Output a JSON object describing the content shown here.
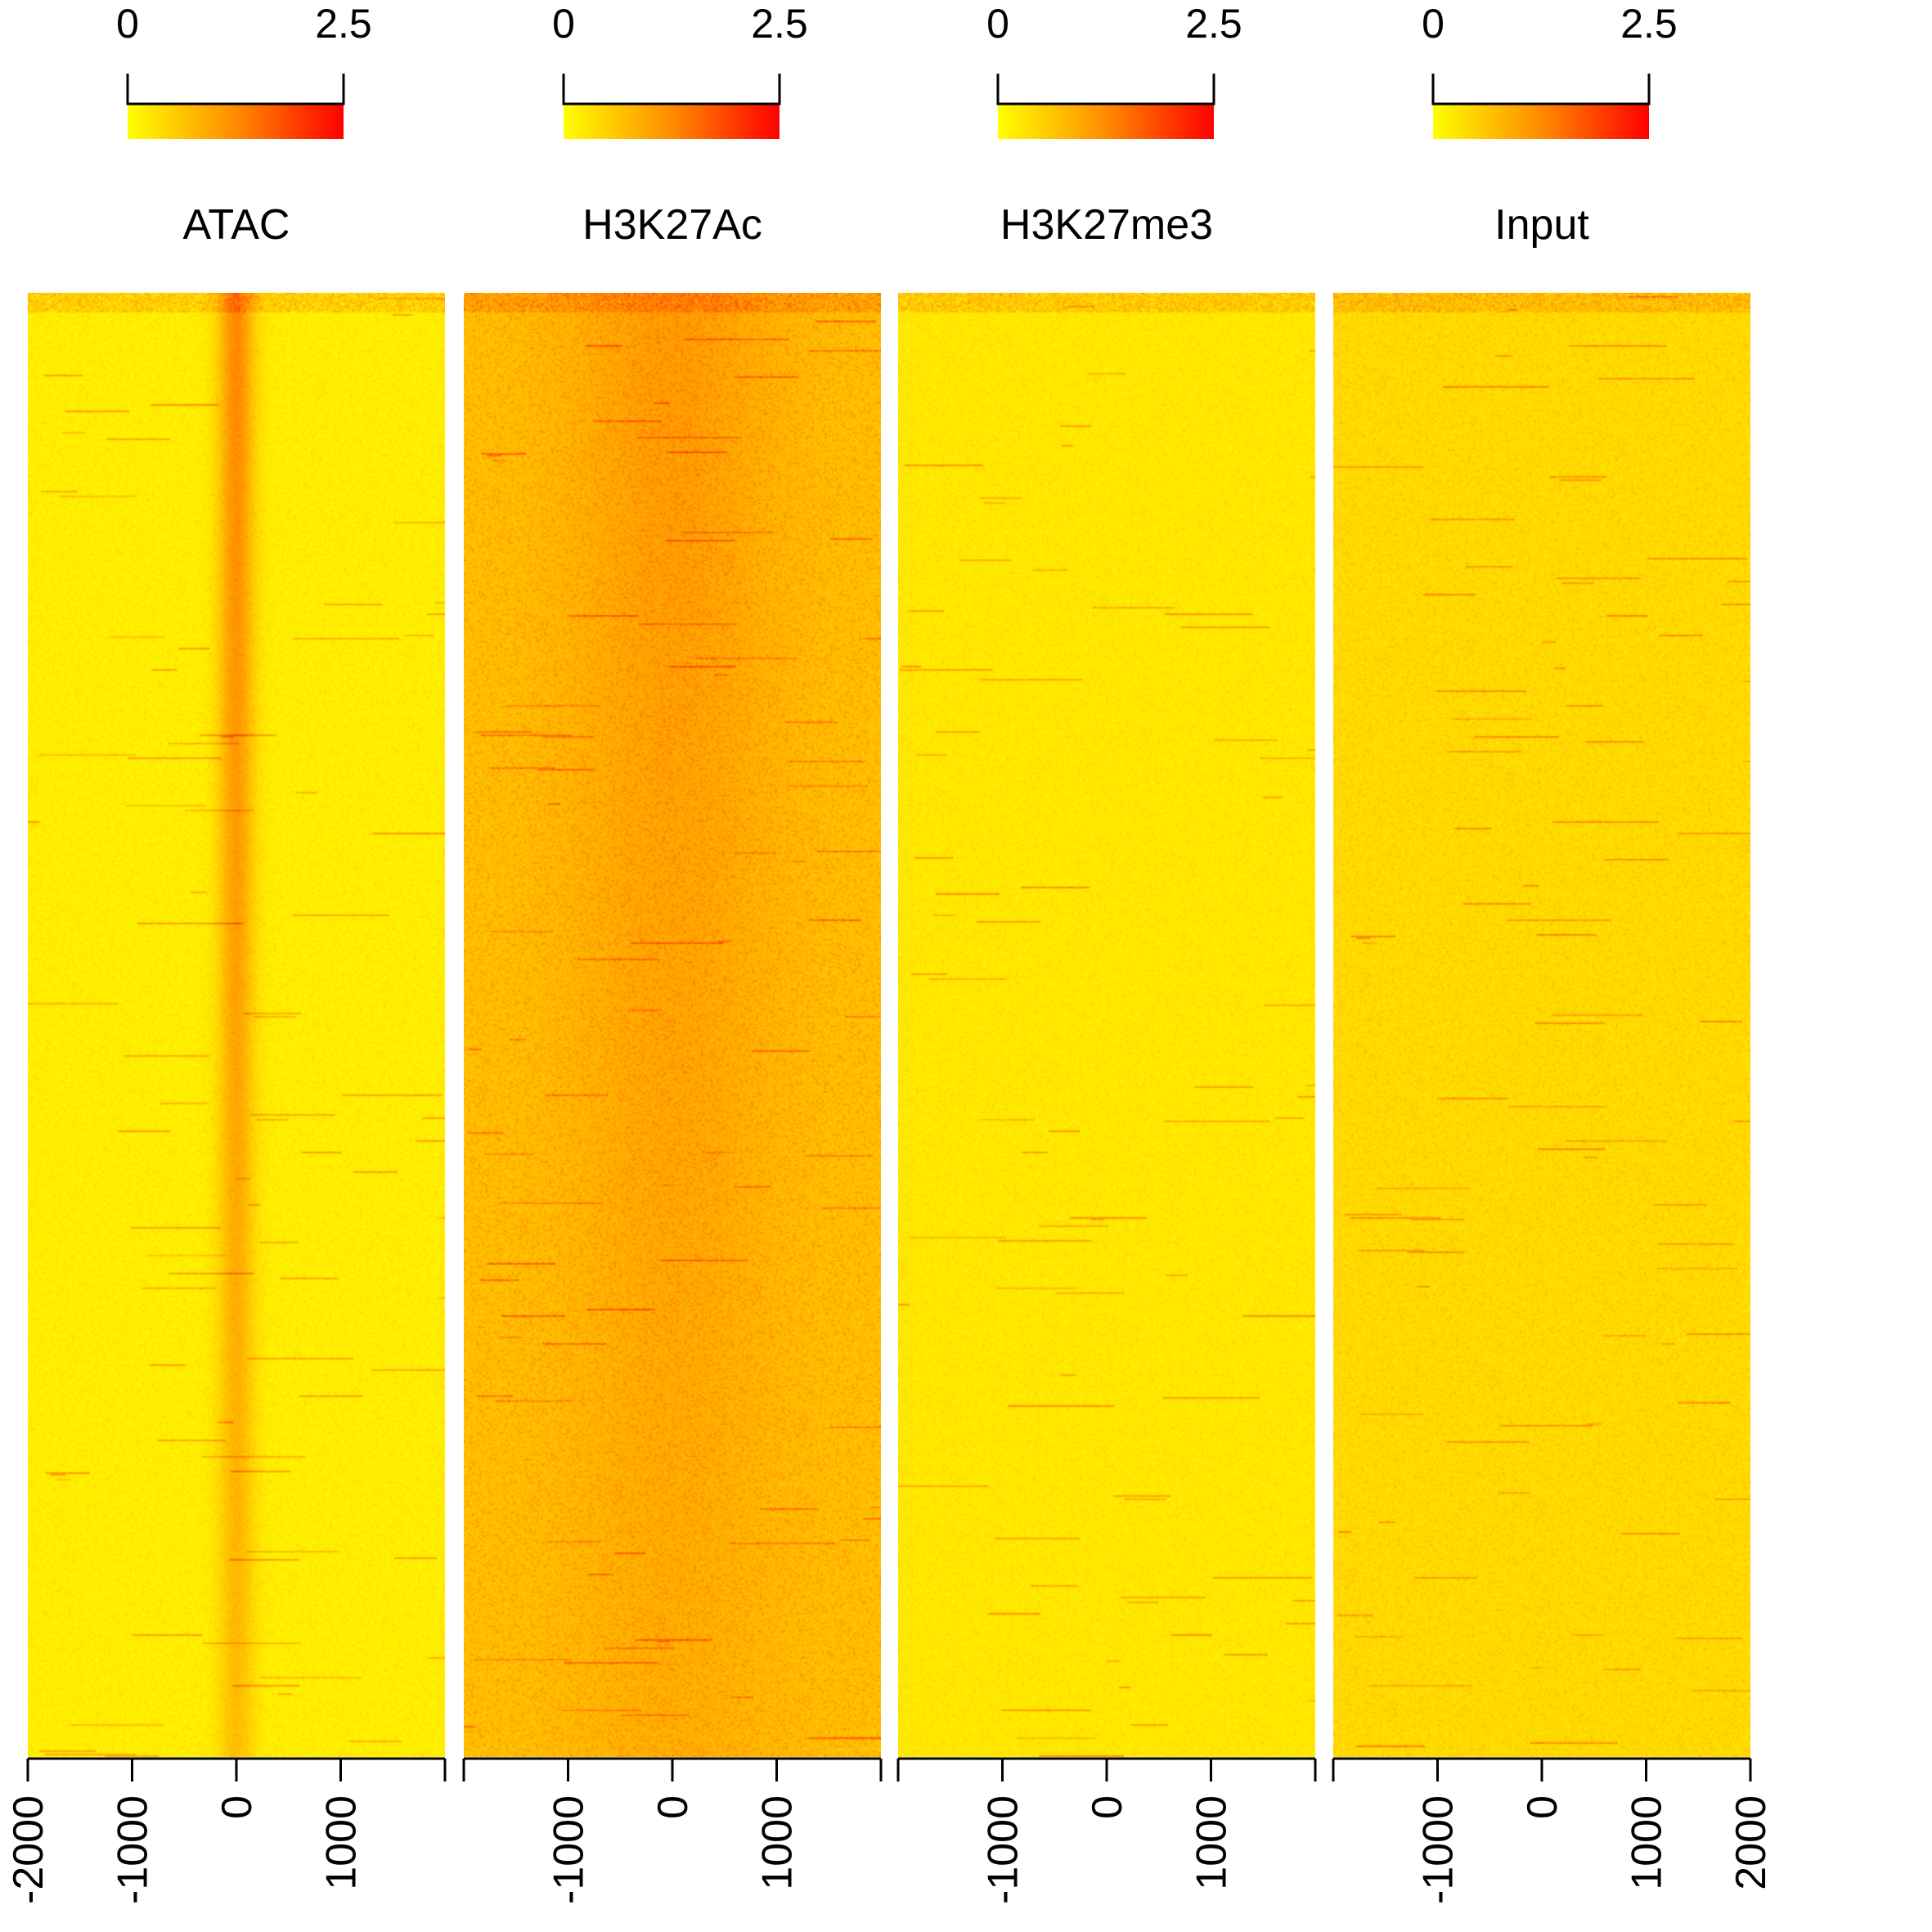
{
  "chart_data": {
    "type": "heatmap",
    "color_scale": {
      "min": 0,
      "max": 2.5,
      "tick_labels": [
        "0",
        "2.5"
      ],
      "low_color": "#ffff00",
      "high_color": "#ff0000"
    },
    "x_range": [
      -2000,
      2000
    ],
    "panels": [
      {
        "name": "ATAC",
        "x_ticks": [
          "-2000",
          "-1000",
          "0",
          "1000"
        ],
        "center_peak": 1.0,
        "peak_width": 120,
        "background": 0.12,
        "noise": 0.22
      },
      {
        "name": "H3K27Ac",
        "x_ticks": [
          "-1000",
          "0",
          "1000"
        ],
        "center_peak": 0.35,
        "peak_width": 700,
        "background": 0.55,
        "noise": 0.45
      },
      {
        "name": "H3K27me3",
        "x_ticks": [
          "-1000",
          "0",
          "1000"
        ],
        "center_peak": 0.0,
        "peak_width": 500,
        "background": 0.18,
        "noise": 0.22
      },
      {
        "name": "Input",
        "x_ticks": [
          "-1000",
          "0",
          "1000",
          "2000"
        ],
        "center_peak": 0.0,
        "peak_width": 500,
        "background": 0.3,
        "noise": 0.3
      }
    ]
  }
}
